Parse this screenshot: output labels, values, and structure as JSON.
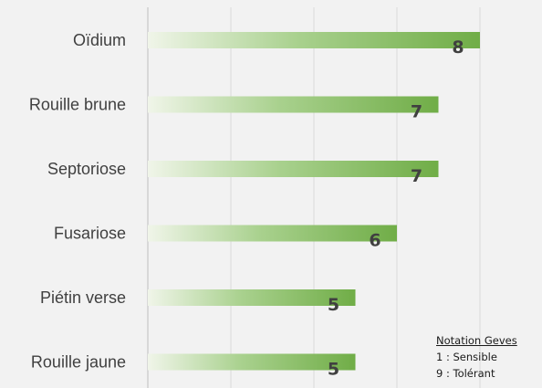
{
  "chart_data": {
    "type": "bar",
    "orientation": "horizontal",
    "categories": [
      "Oïdium",
      "Rouille brune",
      "Septoriose",
      "Fusariose",
      "Piétin verse",
      "Rouille jaune"
    ],
    "values": [
      8,
      7,
      7,
      6,
      5,
      5
    ],
    "xlim": [
      0,
      9
    ],
    "grid": true,
    "colors": {
      "bar_start": "#f0f5e9",
      "bar_end": "#70ad47",
      "grid": "#d9d9d9",
      "text": "#404040"
    }
  },
  "notes": {
    "title": "Notation Geves",
    "line1": "1 : Sensible",
    "line2": "9 : Tolérant"
  }
}
